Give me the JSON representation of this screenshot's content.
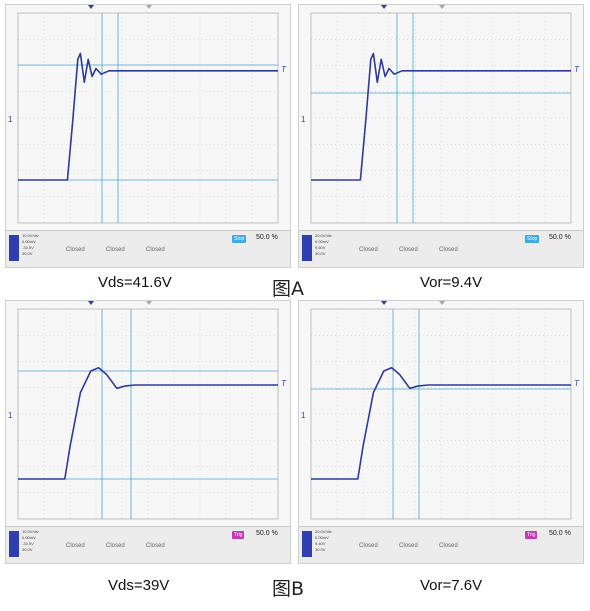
{
  "panels": [
    {
      "id": "a-left",
      "status_small": {
        "scale": "10.0V/div",
        "offset": "0.00mV",
        "line3": "-33.0V",
        "line4": "30.0V"
      },
      "closed_labels": [
        "Closed",
        "Closed",
        "Closed"
      ],
      "trigger_mode": "Stop",
      "trigger_color": "#3fa9e6",
      "ratio": "50.0 %",
      "wave": [
        [
          0,
          0
        ],
        [
          0.19,
          0
        ],
        [
          0.21,
          0.5
        ],
        [
          0.23,
          1.05
        ],
        [
          0.24,
          1.1
        ],
        [
          0.255,
          0.85
        ],
        [
          0.27,
          1.05
        ],
        [
          0.285,
          0.9
        ],
        [
          0.3,
          0.97
        ],
        [
          0.32,
          0.92
        ],
        [
          0.35,
          0.95
        ],
        [
          1,
          0.95
        ]
      ]
    },
    {
      "id": "a-right",
      "status_small": {
        "scale": "20.0V/div",
        "offset": "0.00mV",
        "line3": "9.60V",
        "line4": "30.0V"
      },
      "closed_labels": [
        "Closed",
        "Closed",
        "Closed"
      ],
      "trigger_mode": "Stop",
      "trigger_color": "#3fa9e6",
      "ratio": "50.0 %",
      "wave": [
        [
          0,
          0
        ],
        [
          0.19,
          0
        ],
        [
          0.21,
          0.5
        ],
        [
          0.23,
          1.05
        ],
        [
          0.24,
          1.1
        ],
        [
          0.255,
          0.85
        ],
        [
          0.27,
          1.05
        ],
        [
          0.285,
          0.9
        ],
        [
          0.3,
          0.97
        ],
        [
          0.32,
          0.92
        ],
        [
          0.35,
          0.95
        ],
        [
          1,
          0.95
        ]
      ]
    },
    {
      "id": "b-left",
      "status_small": {
        "scale": "10.0V/div",
        "offset": "0.00mV",
        "line3": "-33.0V",
        "line4": "30.0V"
      },
      "closed_labels": [
        "Closed",
        "Closed",
        "Closed"
      ],
      "trigger_mode": "Trig",
      "trigger_color": "#c43ab0",
      "ratio": "50.0 %",
      "wave": [
        [
          0,
          0
        ],
        [
          0.18,
          0
        ],
        [
          0.2,
          0.3
        ],
        [
          0.24,
          0.8
        ],
        [
          0.28,
          1.0
        ],
        [
          0.31,
          1.03
        ],
        [
          0.34,
          0.97
        ],
        [
          0.38,
          0.84
        ],
        [
          0.41,
          0.86
        ],
        [
          0.45,
          0.87
        ],
        [
          1,
          0.87
        ]
      ]
    },
    {
      "id": "b-right",
      "status_small": {
        "scale": "20.0V/div",
        "offset": "0.00mV",
        "line3": "9.40V",
        "line4": "30.0V"
      },
      "closed_labels": [
        "Closed",
        "Closed",
        "Closed"
      ],
      "trigger_mode": "Trig",
      "trigger_color": "#c43ab0",
      "ratio": "50.0 %",
      "wave": [
        [
          0,
          0
        ],
        [
          0.18,
          0
        ],
        [
          0.2,
          0.3
        ],
        [
          0.24,
          0.8
        ],
        [
          0.28,
          1.0
        ],
        [
          0.31,
          1.03
        ],
        [
          0.34,
          0.97
        ],
        [
          0.38,
          0.84
        ],
        [
          0.41,
          0.86
        ],
        [
          0.45,
          0.87
        ],
        [
          1,
          0.87
        ]
      ]
    }
  ],
  "captions": {
    "a_left": "Vds=41.6V",
    "a_right": "Vor=9.4V",
    "a_fig": "图A",
    "b_left": "Vds=39V",
    "b_right": "Vor=7.6V",
    "b_fig": "图B"
  },
  "markers": {
    "t_label": "T",
    "ch_label": "1"
  },
  "colors": {
    "trace": "#2d3a9e",
    "cursor": "#49a6d6",
    "grid": "#c4c4c4"
  }
}
